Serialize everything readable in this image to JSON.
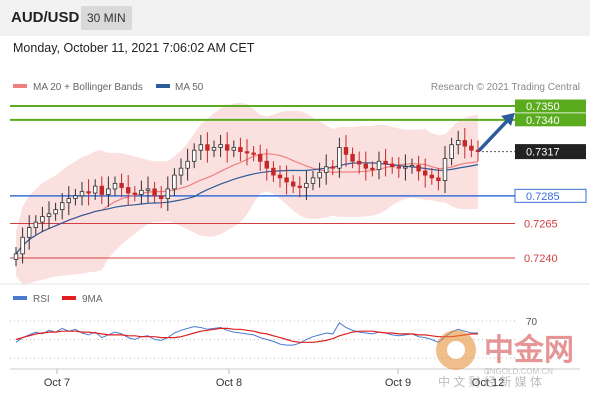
{
  "header": {
    "pair": "AUD/USD",
    "timeframe": "30 MIN",
    "datetime": "Monday, October 11, 2021 7:06:02 AM CET"
  },
  "legend": {
    "bollinger": {
      "label": "MA 20 + Bollinger Bands",
      "color": "#f08080"
    },
    "ma50": {
      "label": "MA 50",
      "color": "#2e5c9a"
    },
    "copyright": "Research © 2021 Trading Central"
  },
  "rsi_legend": {
    "rsi": {
      "label": "RSI",
      "color": "#4a7bd0"
    },
    "ma9": {
      "label": "9MA",
      "color": "#e02020"
    }
  },
  "watermark": {
    "text": "中金网",
    "url": "CNGOLD.COM.CN",
    "subtitle": "中 文 财 经 新 媒 体"
  },
  "chart_data": {
    "type": "candlestick",
    "x_ticks": [
      "Oct 7",
      "Oct 8",
      "Oct 9",
      "Oct 12"
    ],
    "ylim": [
      0.7227,
      0.736
    ],
    "resistance_levels": [
      {
        "value": 0.735,
        "label": "0.7350",
        "color": "#5aab1e"
      },
      {
        "value": 0.734,
        "label": "0.7340",
        "color": "#5aab1e"
      }
    ],
    "current_price": {
      "value": 0.7317,
      "label": "0.7317",
      "color": "#222222"
    },
    "pivot": {
      "value": 0.7285,
      "label": "0.7285",
      "color": "#3a6fd8"
    },
    "supports": [
      {
        "value": 0.7265,
        "label": "0.7265",
        "color": "#d04040"
      },
      {
        "value": 0.724,
        "label": "0.7240",
        "color": "#d04040"
      }
    ],
    "close_series": [
      0.7243,
      0.7255,
      0.7262,
      0.7266,
      0.727,
      0.7272,
      0.7275,
      0.728,
      0.7283,
      0.7285,
      0.7288,
      0.7287,
      0.7292,
      0.7286,
      0.729,
      0.7294,
      0.7291,
      0.7287,
      0.7286,
      0.7289,
      0.729,
      0.7285,
      0.7283,
      0.729,
      0.73,
      0.7305,
      0.731,
      0.7318,
      0.7322,
      0.7318,
      0.732,
      0.7322,
      0.7318,
      0.732,
      0.7317,
      0.7316,
      0.7315,
      0.731,
      0.7305,
      0.73,
      0.7298,
      0.7295,
      0.7292,
      0.7291,
      0.7294,
      0.7298,
      0.7302,
      0.7306,
      0.7305,
      0.732,
      0.7315,
      0.731,
      0.7308,
      0.7305,
      0.7304,
      0.731,
      0.7308,
      0.7306,
      0.7305,
      0.7306,
      0.7307,
      0.7303,
      0.73,
      0.7298,
      0.7296,
      0.7312,
      0.7322,
      0.7325,
      0.7321,
      0.7318,
      0.7317
    ],
    "rsi": {
      "ylim": [
        25,
        80
      ],
      "level_labels": [
        "70"
      ],
      "rsi_series": [
        47,
        52,
        55,
        58,
        56,
        60,
        58,
        62,
        59,
        61,
        57,
        55,
        58,
        52,
        55,
        58,
        56,
        52,
        50,
        53,
        54,
        50,
        49,
        52,
        57,
        60,
        62,
        64,
        63,
        61,
        62,
        63,
        60,
        58,
        57,
        56,
        55,
        52,
        50,
        48,
        45,
        44,
        44,
        46,
        50,
        53,
        55,
        57,
        56,
        68,
        63,
        60,
        58,
        57,
        56,
        58,
        57,
        55,
        54,
        55,
        56,
        53,
        52,
        50,
        47,
        53,
        58,
        61,
        59,
        57,
        57
      ],
      "ma9_series": [
        50,
        52,
        54,
        56,
        57,
        58,
        58,
        59,
        59,
        59,
        58,
        58,
        57,
        56,
        55,
        55,
        55,
        54,
        54,
        53,
        53,
        53,
        52,
        52,
        52,
        53,
        55,
        57,
        59,
        60,
        61,
        62,
        62,
        61,
        61,
        60,
        59,
        57,
        56,
        54,
        52,
        50,
        48,
        47,
        47,
        47,
        48,
        49,
        51,
        54,
        56,
        58,
        59,
        59,
        59,
        58,
        57,
        57,
        56,
        56,
        56,
        55,
        55,
        54,
        53,
        53,
        53,
        54,
        55,
        56,
        56
      ]
    }
  }
}
